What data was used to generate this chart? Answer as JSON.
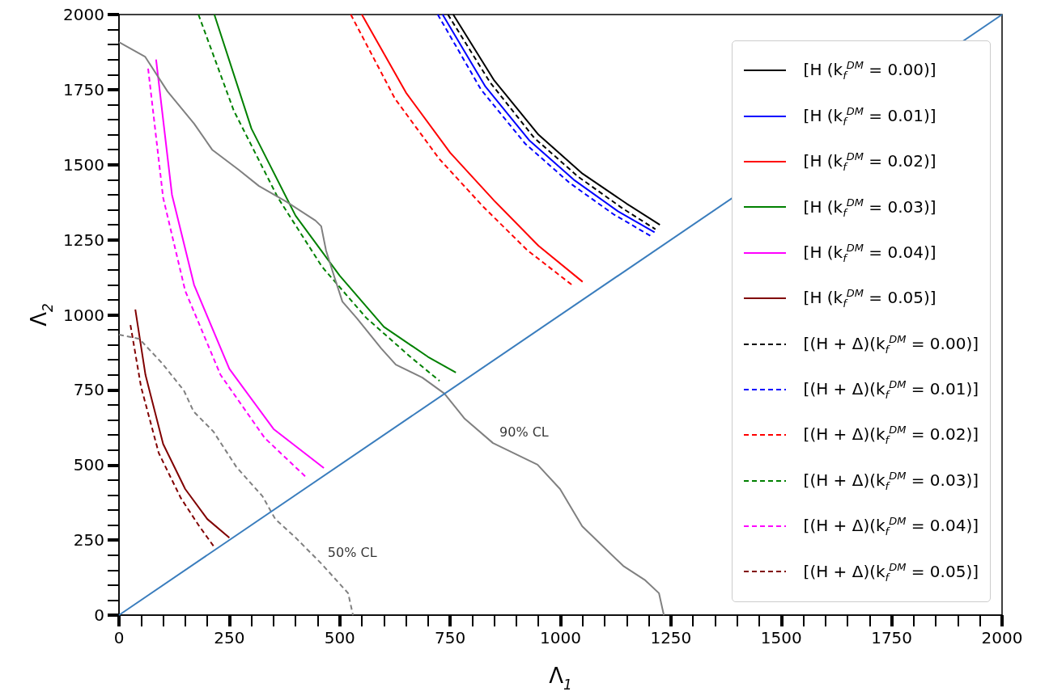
{
  "chart_data": {
    "type": "line",
    "xlabel": "Λ$_{1}$",
    "ylabel": "Λ$_{2}$",
    "xlim": [
      0,
      2000
    ],
    "ylim": [
      0,
      2000
    ],
    "xticks": [
      0,
      250,
      500,
      750,
      1000,
      1250,
      1500,
      1750,
      2000
    ],
    "yticks": [
      0,
      250,
      500,
      750,
      1000,
      1250,
      1500,
      1750,
      2000
    ],
    "grid": false,
    "legend": "right",
    "marker": "none",
    "annotations": [
      {
        "text": "90% CL",
        "x": 847,
        "y": 573
      },
      {
        "text": "50% CL",
        "x": 458,
        "y": 172
      }
    ],
    "series": [
      {
        "name": "[H (k$_{f}$$^{DM}$ = 0.00)]",
        "color": "#000000",
        "line_style": "solid",
        "x": [
          757,
          850,
          950,
          1050,
          1150,
          1225
        ],
        "values": [
          2000,
          1780,
          1600,
          1470,
          1370,
          1300
        ]
      },
      {
        "name": "[H (k$_{f}$$^{DM}$ = 0.01)]",
        "color": "#0000ff",
        "line_style": "solid",
        "x": [
          733,
          830,
          930,
          1030,
          1130,
          1213
        ],
        "values": [
          2000,
          1760,
          1580,
          1450,
          1345,
          1275
        ]
      },
      {
        "name": "[H (k$_{f}$$^{DM}$ = 0.02)]",
        "color": "#ff0000",
        "line_style": "solid",
        "x": [
          550,
          650,
          750,
          850,
          950,
          1050
        ],
        "values": [
          2000,
          1740,
          1540,
          1380,
          1230,
          1110
        ]
      },
      {
        "name": "[H (k$_{f}$$^{DM}$ = 0.03)]",
        "color": "#008000",
        "line_style": "solid",
        "x": [
          216,
          300,
          400,
          500,
          600,
          700,
          763
        ],
        "values": [
          2000,
          1620,
          1330,
          1130,
          960,
          860,
          808
        ]
      },
      {
        "name": "[H (k$_{f}$$^{DM}$ = 0.04)]",
        "color": "#ff00ff",
        "line_style": "solid",
        "x": [
          84,
          120,
          170,
          250,
          350,
          464
        ],
        "values": [
          1850,
          1400,
          1100,
          820,
          620,
          490
        ]
      },
      {
        "name": "[H (k$_{f}$$^{DM}$ = 0.05)]",
        "color": "#800000",
        "line_style": "solid",
        "x": [
          37,
          60,
          100,
          150,
          200,
          250
        ],
        "values": [
          1018,
          800,
          570,
          420,
          320,
          258
        ]
      },
      {
        "name": "[(H + Δ)(k$_{f}$$^{DM}$ = 0.00)]",
        "color": "#000000",
        "line_style": "dashed",
        "x": [
          745,
          840,
          940,
          1040,
          1140,
          1215
        ],
        "values": [
          2000,
          1775,
          1590,
          1460,
          1355,
          1285
        ]
      },
      {
        "name": "[(H + Δ)(k$_{f}$$^{DM}$ = 0.01)]",
        "color": "#0000ff",
        "line_style": "dashed",
        "x": [
          722,
          820,
          920,
          1020,
          1120,
          1205
        ],
        "values": [
          2000,
          1750,
          1570,
          1440,
          1335,
          1262
        ]
      },
      {
        "name": "[(H + Δ)(k$_{f}$$^{DM}$ = 0.02)]",
        "color": "#ff0000",
        "line_style": "dashed",
        "x": [
          525,
          625,
          725,
          825,
          925,
          1030
        ],
        "values": [
          2000,
          1720,
          1520,
          1360,
          1215,
          1095
        ]
      },
      {
        "name": "[(H + Δ)(k$_{f}$$^{DM}$ = 0.03)]",
        "color": "#008000",
        "line_style": "dashed",
        "x": [
          180,
          260,
          360,
          460,
          560,
          660,
          726
        ],
        "values": [
          2000,
          1680,
          1390,
          1160,
          990,
          860,
          780
        ]
      },
      {
        "name": "[(H + Δ)(k$_{f}$$^{DM}$ = 0.04)]",
        "color": "#ff00ff",
        "line_style": "dashed",
        "x": [
          66,
          100,
          150,
          230,
          330,
          427
        ],
        "values": [
          1820,
          1390,
          1080,
          800,
          590,
          455
        ]
      },
      {
        "name": "[(H + Δ)(k$_{f}$$^{DM}$ = 0.05)]",
        "color": "#800000",
        "line_style": "dashed",
        "x": [
          26,
          50,
          90,
          140,
          180,
          216
        ],
        "values": [
          966,
          760,
          540,
          390,
          300,
          226
        ]
      },
      {
        "color": "#808080",
        "line_style": "solid",
        "x": [
          0,
          59,
          110,
          170,
          211,
          271,
          317,
          381,
          445,
          458,
          469,
          488,
          506,
          539,
          594,
          627,
          687,
          737,
          783,
          847,
          948,
          999,
          1049,
          1142,
          1192,
          1223,
          1234
        ],
        "values": [
          1908,
          1860,
          1744,
          1637,
          1550,
          1483,
          1429,
          1375,
          1314,
          1295,
          1214,
          1125,
          1044,
          988,
          888,
          834,
          791,
          738,
          654,
          573,
          501,
          420,
          296,
          164,
          116,
          73,
          0
        ]
      },
      {
        "color": "#808080",
        "line_style": "dashed",
        "x": [
          0,
          46,
          97,
          147,
          169,
          214,
          266,
          325,
          354,
          400,
          458,
          519,
          530
        ],
        "values": [
          934,
          920,
          840,
          748,
          678,
          611,
          493,
          396,
          320,
          258,
          172,
          73,
          0
        ]
      },
      {
        "color": "#3a7dbd",
        "line_style": "solid",
        "x": [
          0,
          2000
        ],
        "values": [
          0,
          2000
        ]
      }
    ]
  }
}
